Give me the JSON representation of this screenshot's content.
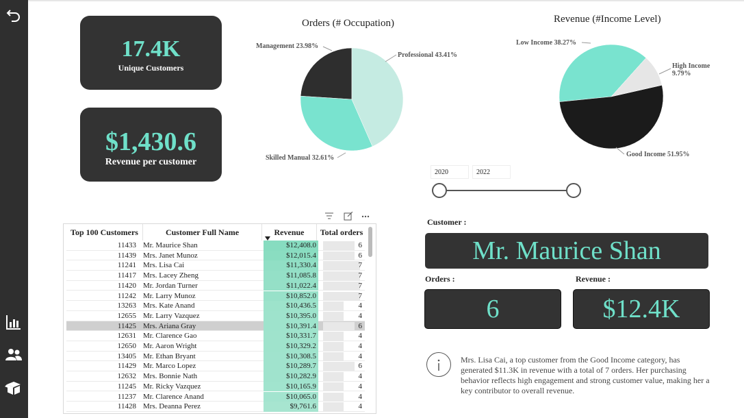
{
  "rail": {
    "icons": [
      "back-icon",
      "bar-chart-icon",
      "users-icon",
      "box-icon"
    ]
  },
  "kpis": {
    "unique_customers": {
      "value": "17.4K",
      "label": "Unique Customers"
    },
    "revenue_per_customer": {
      "value": "$1,430.6",
      "label": "Revenue per customer"
    }
  },
  "orders_pie": {
    "title": "Orders (# Occupation)",
    "labels": {
      "management": "Management 23.98%",
      "professional": "Professional 43.41%",
      "skilled": "Skilled Manual 32.61%"
    },
    "slices": [
      {
        "name": "Professional",
        "pct": 43.41,
        "color": "#c5ebe2"
      },
      {
        "name": "Skilled Manual",
        "pct": 32.61,
        "color": "#79e3cf"
      },
      {
        "name": "Management",
        "pct": 23.98,
        "color": "#2e2e2e"
      }
    ]
  },
  "revenue_pie": {
    "title": "Revenue (#Income Level)",
    "labels": {
      "low": "Low Income 38.27%",
      "high_1": "High Income",
      "high_2": "9.79%",
      "good": "Good Income 51.95%"
    },
    "slices": [
      {
        "name": "High Income",
        "pct": 9.79,
        "color": "#e6e6e6"
      },
      {
        "name": "Good Income",
        "pct": 51.95,
        "color": "#1b1b1b"
      },
      {
        "name": "Low Income",
        "pct": 38.27,
        "color": "#79e3cf"
      }
    ]
  },
  "slicer": {
    "from": "2020",
    "to": "2022"
  },
  "table": {
    "headers": [
      "Top 100 Customers",
      "Customer Full Name",
      "Revenue",
      "Total orders"
    ],
    "rows": [
      [
        "11433",
        "Mr. Maurice Shan",
        "$12,408.0",
        "6",
        0.84,
        0.58
      ],
      [
        "11439",
        "Mrs. Janet Munoz",
        "$12,015.4",
        "6",
        0.8,
        0.58
      ],
      [
        "11241",
        "Mrs. Lisa Cai",
        "$11,330.4",
        "7",
        0.72,
        0.68
      ],
      [
        "11417",
        "Mrs. Lacey Zheng",
        "$11,085.8",
        "7",
        0.68,
        0.68
      ],
      [
        "11420",
        "Mr. Jordan Turner",
        "$11,022.4",
        "7",
        0.67,
        0.68
      ],
      [
        "11242",
        "Mr. Larry Munoz",
        "$10,852.0",
        "7",
        0.64,
        0.68
      ],
      [
        "13263",
        "Mrs. Kate Anand",
        "$10,436.5",
        "4",
        0.58,
        0.38
      ],
      [
        "12655",
        "Mr. Larry Vazquez",
        "$10,395.0",
        "4",
        0.57,
        0.38
      ],
      [
        "11425",
        "Mrs. Ariana Gray",
        "$10,391.4",
        "6",
        0.57,
        0.58
      ],
      [
        "12631",
        "Mr. Clarence Gao",
        "$10,331.7",
        "4",
        0.56,
        0.38
      ],
      [
        "12650",
        "Mr. Aaron Wright",
        "$10,329.2",
        "4",
        0.56,
        0.38
      ],
      [
        "13405",
        "Mr. Ethan Bryant",
        "$10,308.5",
        "4",
        0.55,
        0.38
      ],
      [
        "11429",
        "Mr. Marco Lopez",
        "$10,289.7",
        "6",
        0.55,
        0.58
      ],
      [
        "12632",
        "Mrs. Bonnie Nath",
        "$10,282.9",
        "4",
        0.55,
        0.38
      ],
      [
        "11245",
        "Mr. Ricky Vazquez",
        "$10,165.9",
        "4",
        0.53,
        0.38
      ],
      [
        "11237",
        "Mr. Clarence Anand",
        "$10,065.0",
        "4",
        0.51,
        0.38
      ],
      [
        "11428",
        "Mrs. Deanna Perez",
        "$9,761.6",
        "4",
        0.47,
        0.38
      ]
    ],
    "selected_index": 8
  },
  "customer": {
    "label": "Customer :",
    "name": "Mr. Maurice Shan",
    "orders_label": "Orders :",
    "orders_value": "6",
    "revenue_label": "Revenue :",
    "revenue_value": "$12.4K"
  },
  "narrative": "Mrs. Lisa Cai, a top customer from the Good Income category, has generated $11.3K in revenue with a total of 7 orders. Her purchasing behavior reflects high engagement and strong customer value, making her a key contributor to overall revenue.",
  "colors": {
    "accent": "#6fe0c9",
    "card": "#333333"
  }
}
